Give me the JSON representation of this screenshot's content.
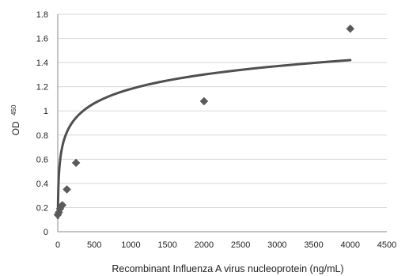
{
  "chart_data": {
    "type": "scatter",
    "xlabel": "Recombinant Influenza A virus nucleoprotein (ng/mL)",
    "ylabel": {
      "main": "OD",
      "subscript": "450"
    },
    "xlim": [
      0,
      4500
    ],
    "ylim": [
      0,
      1.8
    ],
    "x_ticks": [
      0,
      500,
      1000,
      1500,
      2000,
      2500,
      3000,
      3500,
      4000,
      4500
    ],
    "y_ticks": [
      0,
      0.2,
      0.4,
      0.6,
      0.8,
      1,
      1.2,
      1.4,
      1.6,
      1.8
    ],
    "points": [
      {
        "x": 0,
        "y": 0.14
      },
      {
        "x": 15.6,
        "y": 0.16
      },
      {
        "x": 31.25,
        "y": 0.19
      },
      {
        "x": 62.5,
        "y": 0.22
      },
      {
        "x": 125,
        "y": 0.35
      },
      {
        "x": 250,
        "y": 0.57
      },
      {
        "x": 2000,
        "y": 1.08
      },
      {
        "x": 4000,
        "y": 1.68
      }
    ],
    "trendline": {
      "type": "logarithmic",
      "x_range": [
        2,
        4000
      ],
      "formula": {
        "a": 0.1718,
        "b": -0.0049
      }
    },
    "grid": {
      "horizontal": true,
      "vertical": false
    },
    "colors": {
      "marker": "#5a5a5a",
      "trendline": "#4f4f4f",
      "grid": "#d8d8d8",
      "axis": "#8a8a8a",
      "text": "#222222"
    }
  }
}
